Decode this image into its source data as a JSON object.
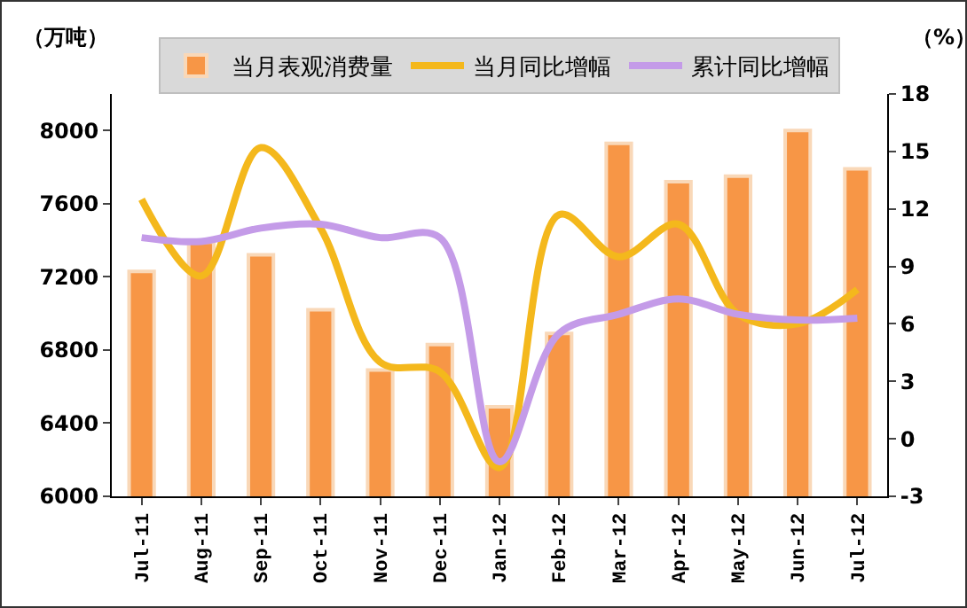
{
  "chart_data": {
    "type": "bar",
    "categories": [
      "Jul-11",
      "Aug-11",
      "Sep-11",
      "Oct-11",
      "Nov-11",
      "Dec-11",
      "Jan-12",
      "Feb-12",
      "Mar-12",
      "Apr-12",
      "May-12",
      "Jun-12",
      "Jul-12"
    ],
    "series": [
      {
        "name": "当月表观消费量",
        "color": "#f79646",
        "values": [
          7230,
          7390,
          7320,
          7020,
          6690,
          6830,
          6490,
          6890,
          7930,
          7720,
          7750,
          8000,
          7790
        ]
      },
      {
        "name": "当月同比增幅",
        "type": "line",
        "axis": "y2",
        "color": "#f4b81c",
        "values": [
          12.5,
          8.5,
          15.2,
          11.0,
          4.0,
          3.5,
          -1.5,
          11.7,
          9.5,
          11.2,
          6.5,
          6.0,
          7.8
        ]
      },
      {
        "name": "累计同比增幅",
        "type": "line",
        "axis": "y2",
        "color": "#c49be8",
        "values": [
          10.5,
          10.3,
          11.0,
          11.2,
          10.5,
          10.5,
          -1.2,
          5.5,
          6.5,
          7.3,
          6.5,
          6.2,
          6.3
        ]
      }
    ],
    "ylabel": "（万吨）",
    "y2label": "（%）",
    "ylim": [
      6000,
      8200
    ],
    "yticks": [
      6000,
      6400,
      6800,
      7200,
      7600,
      8000
    ],
    "y2lim": [
      -3,
      18
    ],
    "y2ticks": [
      -3,
      0,
      3,
      6,
      9,
      12,
      15,
      18
    ],
    "grid": false,
    "legend": "top",
    "marker": "none",
    "line_style": "solid"
  }
}
